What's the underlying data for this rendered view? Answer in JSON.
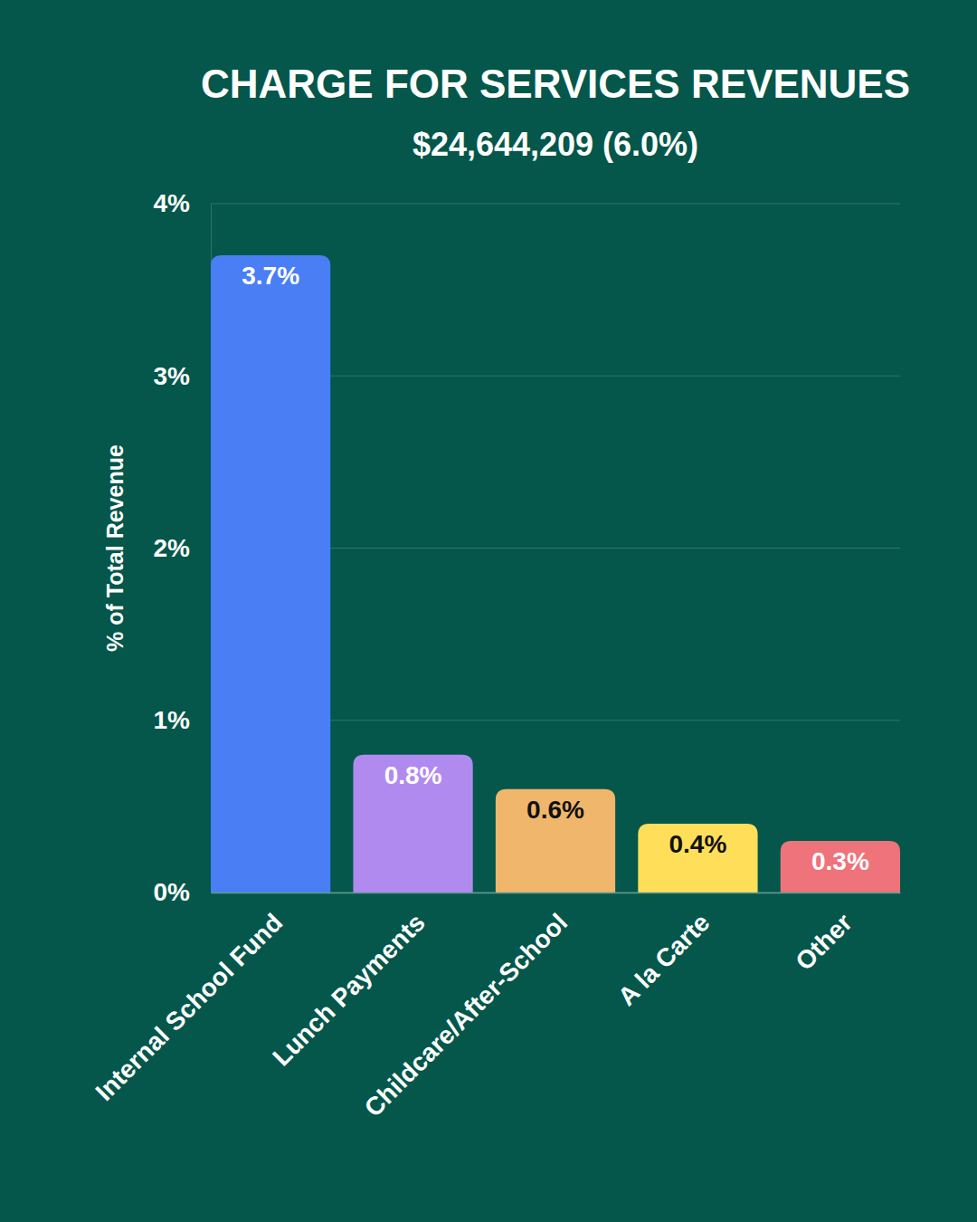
{
  "chart_data": {
    "type": "bar",
    "title": "CHARGE FOR SERVICES REVENUES",
    "subtitle": "$24,644,209 (6.0%)",
    "y_label": "% of Total Revenue",
    "categories": [
      "Internal School Fund",
      "Lunch Payments",
      "Childcare/After-School",
      "A la Carte",
      "Other"
    ],
    "values": [
      3.7,
      0.8,
      0.6,
      0.4,
      0.3
    ],
    "value_labels": [
      "3.7%",
      "0.8%",
      "0.6%",
      "0.4%",
      "0.3%"
    ],
    "colors": [
      "#4a7ef5",
      "#b18af0",
      "#f0b66b",
      "#ffdf5a",
      "#ee737a"
    ],
    "ylim": [
      0,
      4
    ],
    "yticks": [
      {
        "value": 0,
        "label": "0%"
      },
      {
        "value": 1,
        "label": "1%"
      },
      {
        "value": 2,
        "label": "2%"
      },
      {
        "value": 3,
        "label": "3%"
      },
      {
        "value": 4,
        "label": "4%"
      }
    ],
    "grid": true,
    "data_labels": true
  }
}
